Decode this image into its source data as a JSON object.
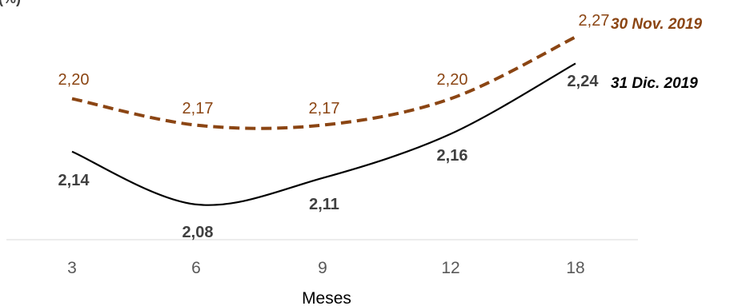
{
  "chart_data": {
    "type": "line",
    "categories": [
      "3",
      "6",
      "9",
      "12",
      "18"
    ],
    "xlabel": "Meses",
    "ylabel": "",
    "ylim": [
      2.04,
      2.3
    ],
    "grid": false,
    "series": [
      {
        "name": "30 Nov. 2019",
        "values": [
          2.2,
          2.17,
          2.17,
          2.2,
          2.27
        ],
        "value_labels": [
          "2,20",
          "2,17",
          "2,17",
          "2,20",
          "2,27"
        ],
        "color": "#8B4513",
        "dash": "dashed"
      },
      {
        "name": "31 Dic. 2019",
        "values": [
          2.14,
          2.08,
          2.11,
          2.16,
          2.24
        ],
        "value_labels": [
          "2,14",
          "2,08",
          "2,11",
          "2,16",
          "2,24"
        ],
        "color": "#000000",
        "dash": "solid"
      }
    ],
    "corner_mark": "(%)"
  }
}
